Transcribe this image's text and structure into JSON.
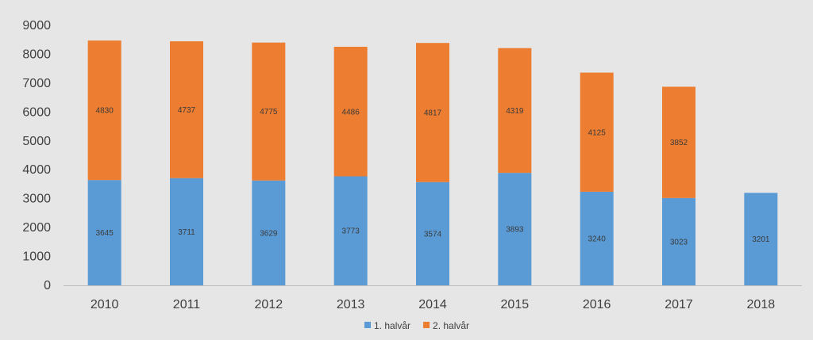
{
  "chart_data": {
    "type": "bar",
    "stacked": true,
    "categories": [
      "2010",
      "2011",
      "2012",
      "2013",
      "2014",
      "2015",
      "2016",
      "2017",
      "2018"
    ],
    "series": [
      {
        "name": "1. halvår",
        "color": "#5b9bd5",
        "values": [
          3645,
          3711,
          3629,
          3773,
          3574,
          3893,
          3240,
          3023,
          3201
        ]
      },
      {
        "name": "2. halvår",
        "color": "#ed7d31",
        "values": [
          4830,
          4737,
          4775,
          4486,
          4817,
          4319,
          4125,
          3852,
          null
        ]
      }
    ],
    "ylim": [
      0,
      9000
    ],
    "yticks": [
      "0",
      "1000",
      "2000",
      "3000",
      "4000",
      "5000",
      "6000",
      "7000",
      "8000",
      "9000"
    ],
    "grid": false,
    "legend_position": "bottom",
    "data_labels": true
  }
}
